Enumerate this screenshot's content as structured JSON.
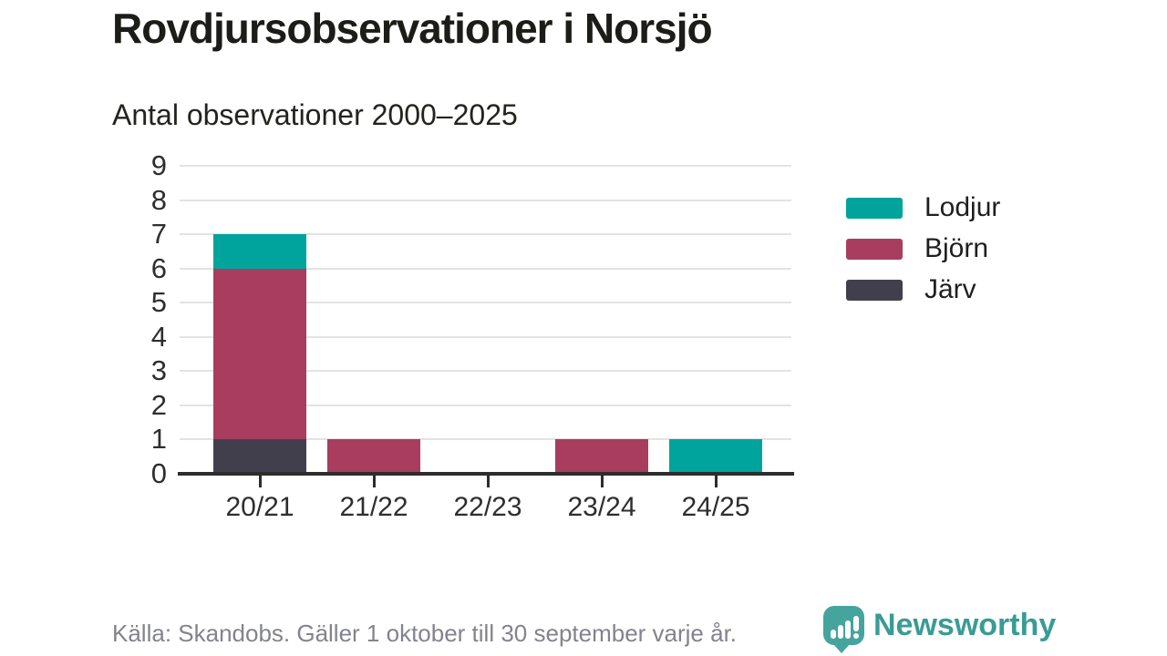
{
  "page": {
    "title": "Rovdjursobservationer i Norsjö",
    "subtitle": "Antal observationer 2000–2025",
    "footer": "Källa: Skandobs. Gäller 1 oktober till 30 september varje år.",
    "brand": {
      "name": "Newsworthy",
      "icon": "newsworthy-speech-bubble-chart-icon",
      "icon_color": "#45a49e",
      "text_color": "#3a9b95"
    }
  },
  "chart_data": {
    "type": "bar",
    "stacked": true,
    "title": "Rovdjursobservationer i Norsjö",
    "subtitle": "Antal observationer 2000–2025",
    "categories": [
      "20/21",
      "21/22",
      "22/23",
      "23/24",
      "24/25"
    ],
    "series": [
      {
        "name": "Järv",
        "color": "#423f4d",
        "values": [
          1,
          0,
          0,
          0,
          0
        ]
      },
      {
        "name": "Björn",
        "color": "#a93d5f",
        "values": [
          5,
          1,
          0,
          1,
          0
        ]
      },
      {
        "name": "Lodjur",
        "color": "#00a49c",
        "values": [
          1,
          0,
          0,
          0,
          1
        ]
      }
    ],
    "stack_totals": [
      7,
      1,
      0,
      1,
      1
    ],
    "legend": {
      "position": "right",
      "order": [
        "Lodjur",
        "Björn",
        "Järv"
      ]
    },
    "xlabel": "",
    "ylabel": "",
    "ylim": [
      0,
      9
    ],
    "yticks": [
      0,
      1,
      2,
      3,
      4,
      5,
      6,
      7,
      8,
      9
    ],
    "grid": true,
    "source_note": "Källa: Skandobs. Gäller 1 oktober till 30 september varje år."
  }
}
